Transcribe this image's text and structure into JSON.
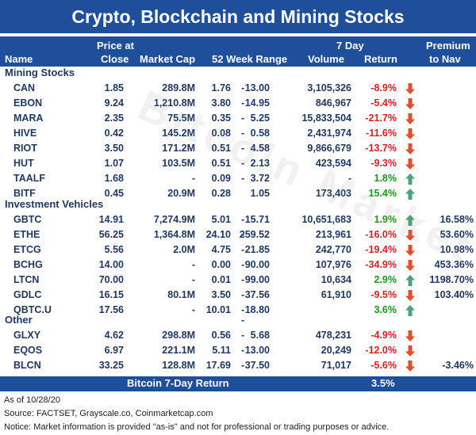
{
  "title": "Crypto, Blockchain and Mining Stocks",
  "headers": {
    "name": "Name",
    "price_line1": "Price at",
    "price_line2": "Close",
    "market_cap": "Market Cap",
    "range": "52 Week Range",
    "seven_day_line1": "7 Day",
    "volume": "Volume",
    "return": "Return",
    "premium_line1": "Premium",
    "premium_line2": "to Nav"
  },
  "sections": [
    {
      "label": "Mining Stocks",
      "rows": [
        {
          "name": "CAN",
          "price": "1.85",
          "mcap": "289.8M",
          "low": "1.76",
          "dash": "-",
          "high": "13.00",
          "volume": "3,105,326",
          "ret": "-8.9%",
          "dir": "down",
          "prem": ""
        },
        {
          "name": "EBON",
          "price": "9.24",
          "mcap": "1,210.8M",
          "low": "3.80",
          "dash": "-",
          "high": "14.95",
          "volume": "846,967",
          "ret": "-5.4%",
          "dir": "down",
          "prem": ""
        },
        {
          "name": "MARA",
          "price": "2.35",
          "mcap": "75.5M",
          "low": "0.35",
          "dash": "-",
          "high": "5.25",
          "volume": "15,833,504",
          "ret": "-21.7%",
          "dir": "down",
          "prem": ""
        },
        {
          "name": "HIVE",
          "price": "0.42",
          "mcap": "145.2M",
          "low": "0.08",
          "dash": "-",
          "high": "0.58",
          "volume": "2,431,974",
          "ret": "-11.6%",
          "dir": "down",
          "prem": ""
        },
        {
          "name": "RIOT",
          "price": "3.50",
          "mcap": "171.2M",
          "low": "0.51",
          "dash": "-",
          "high": "4.58",
          "volume": "9,866,679",
          "ret": "-13.7%",
          "dir": "down",
          "prem": ""
        },
        {
          "name": "HUT",
          "price": "1.07",
          "mcap": "103.5M",
          "low": "0.51",
          "dash": "-",
          "high": "2.13",
          "volume": "423,594",
          "ret": "-9.3%",
          "dir": "down",
          "prem": ""
        },
        {
          "name": "TAALF",
          "price": "1.68",
          "mcap": "-",
          "low": "0.09",
          "dash": "-",
          "high": "3.72",
          "volume": "-",
          "ret": "1.8%",
          "dir": "up",
          "prem": ""
        },
        {
          "name": "BITF",
          "price": "0.45",
          "mcap": "20.9M",
          "low": "0.28",
          "dash": "",
          "high": "1.05",
          "volume": "173,403",
          "ret": "15.4%",
          "dir": "up",
          "prem": ""
        }
      ]
    },
    {
      "label": "Investment Vehicles",
      "rows": [
        {
          "name": "GBTC",
          "price": "14.91",
          "mcap": "7,274.9M",
          "low": "5.01",
          "dash": "-",
          "high": "15.71",
          "volume": "10,651,683",
          "ret": "1.9%",
          "dir": "up",
          "prem": "16.58%"
        },
        {
          "name": "ETHE",
          "price": "56.25",
          "mcap": "1,364.8M",
          "low": "24.10",
          "dash": "-",
          "high": "259.52",
          "volume": "213,961",
          "ret": "-16.0%",
          "dir": "down",
          "prem": "53.60%"
        },
        {
          "name": "ETCG",
          "price": "5.56",
          "mcap": "2.0M",
          "low": "4.75",
          "dash": "-",
          "high": "21.85",
          "volume": "242,770",
          "ret": "-19.4%",
          "dir": "down",
          "prem": "10.98%"
        },
        {
          "name": "BCHG",
          "price": "14.00",
          "mcap": "-",
          "low": "0.00",
          "dash": "-",
          "high": "90.00",
          "volume": "107,976",
          "ret": "-34.9%",
          "dir": "down",
          "prem": "453.36%"
        },
        {
          "name": "LTCN",
          "price": "70.00",
          "mcap": "-",
          "low": "0.01",
          "dash": "-",
          "high": "99.00",
          "volume": "10,634",
          "ret": "2.9%",
          "dir": "up",
          "prem": "1198.70%"
        },
        {
          "name": "GDLC",
          "price": "16.15",
          "mcap": "80.1M",
          "low": "3.50",
          "dash": "-",
          "high": "37.56",
          "volume": "61,910",
          "ret": "-9.5%",
          "dir": "down",
          "prem": "103.40%"
        },
        {
          "name": "QBTC.U",
          "price": "17.56",
          "mcap": "-",
          "low": "10.01",
          "dash": "-",
          "high": "18.80",
          "volume": "",
          "ret": "3.6%",
          "dir": "up",
          "prem": ""
        }
      ]
    },
    {
      "label": "Other",
      "rows": [
        {
          "name": "GLXY",
          "price": "4.62",
          "mcap": "298.8M",
          "low": "0.56",
          "dash": "-",
          "high": "5.68",
          "volume": "478,231",
          "ret": "-4.9%",
          "dir": "down",
          "prem": ""
        },
        {
          "name": "EQOS",
          "price": "6.97",
          "mcap": "221.1M",
          "low": "5.11",
          "dash": "-",
          "high": "13.00",
          "volume": "20,249",
          "ret": "-12.0%",
          "dir": "down",
          "prem": ""
        },
        {
          "name": "BLCN",
          "price": "33.25",
          "mcap": "128.8M",
          "low": "17.69",
          "dash": "-",
          "high": "37.50",
          "volume": "71,017",
          "ret": "-5.6%",
          "dir": "down",
          "prem": "-3.46%"
        }
      ]
    }
  ],
  "other_dash": "-",
  "footer": {
    "label": "Bitcoin 7-Day Return",
    "value": "3.5%"
  },
  "notes": [
    "As of 10/28/20",
    "Source: FACTSET, Grayscale.co, Coinmarketcap.com",
    "Notice: Market information is provided \"as-is\" and not for professional or trading purposes or advice."
  ],
  "watermark": "Bitcoin Market News",
  "colors": {
    "header_bg": "#1f4e9a",
    "text": "#1f3864",
    "negative": "#e02020",
    "positive": "#1a9a1a",
    "arrow_down": "#e0502a",
    "arrow_up": "#4aa37a"
  }
}
